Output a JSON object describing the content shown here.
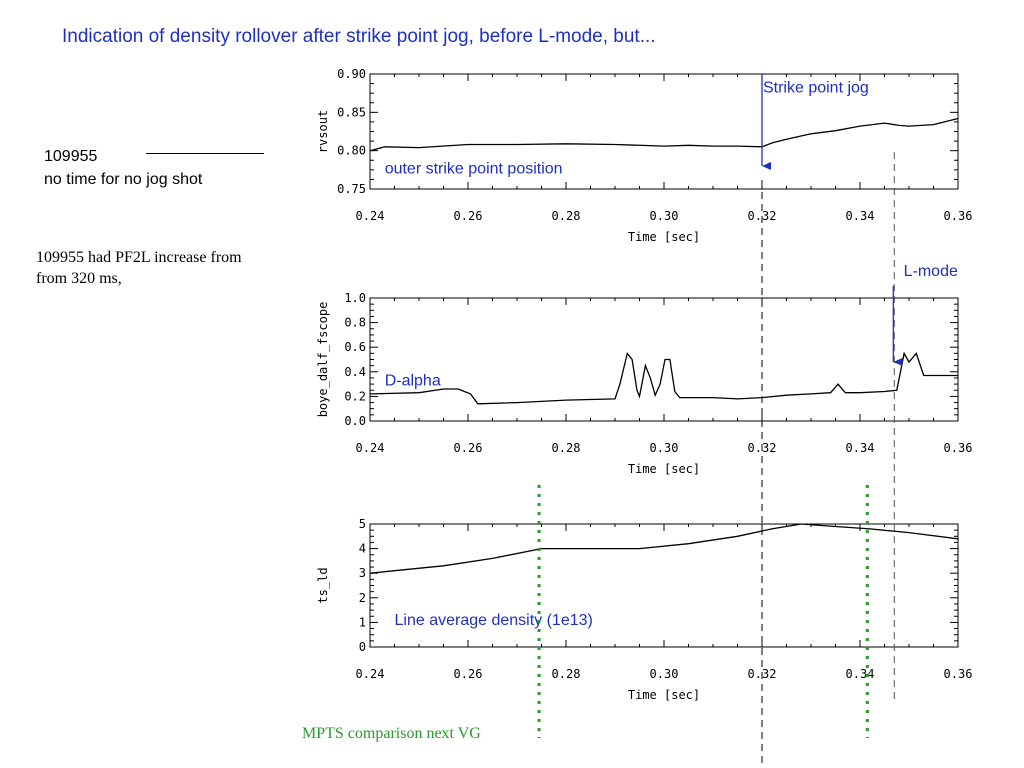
{
  "title": "Indication of density rollover after strike point jog, before L-mode, but...",
  "shot": {
    "number": "109955",
    "note": "no time for no jog shot"
  },
  "pf2l_note": "109955 had PF2L increase from from 320 ms,",
  "mpts_note": "MPTS comparison next VG",
  "colors": {
    "annotation": "#1f2fc0",
    "mpts": "#2a9a2a",
    "trace": "#000000"
  },
  "markers": {
    "strike_jog_time": 0.32,
    "lmode_time": 0.347,
    "mpts_times": [
      0.2745,
      0.3415
    ]
  },
  "chart_data": [
    {
      "type": "line",
      "ylabel": "rvsout",
      "xlabel": "Time [sec]",
      "xlim": [
        0.24,
        0.36
      ],
      "ylim": [
        0.75,
        0.9
      ],
      "xticks": [
        "0.24",
        "0.26",
        "0.28",
        "0.30",
        "0.32",
        "0.34",
        "0.36"
      ],
      "yticks": [
        "0.75",
        "0.80",
        "0.85",
        "0.90"
      ],
      "annotations": [
        {
          "text": "outer strike point position",
          "x": 0.243,
          "y": 0.77
        },
        {
          "text": "Strike point jog",
          "x": 0.3202,
          "y": 0.876
        }
      ],
      "arrows": [
        {
          "x": 0.32,
          "y_from": 0.9,
          "y_to": 0.78
        }
      ],
      "series": [
        {
          "x": [
            0.24,
            0.243,
            0.25,
            0.26,
            0.27,
            0.28,
            0.29,
            0.3,
            0.305,
            0.31,
            0.315,
            0.32,
            0.322,
            0.325,
            0.33,
            0.335,
            0.34,
            0.345,
            0.348,
            0.35,
            0.355,
            0.36
          ],
          "y": [
            0.8,
            0.805,
            0.804,
            0.808,
            0.808,
            0.809,
            0.808,
            0.806,
            0.807,
            0.806,
            0.806,
            0.805,
            0.81,
            0.815,
            0.822,
            0.826,
            0.832,
            0.836,
            0.833,
            0.832,
            0.834,
            0.842
          ]
        }
      ]
    },
    {
      "type": "line",
      "ylabel": "boye_dalf_fscope",
      "xlabel": "Time [sec]",
      "xlim": [
        0.24,
        0.36
      ],
      "ylim": [
        0.0,
        1.0
      ],
      "xticks": [
        "0.24",
        "0.26",
        "0.28",
        "0.30",
        "0.32",
        "0.34",
        "0.36"
      ],
      "yticks": [
        "0.0",
        "0.2",
        "0.4",
        "0.6",
        "0.8",
        "1.0"
      ],
      "annotations": [
        {
          "text": "D-alpha",
          "x": 0.243,
          "y": 0.29
        },
        {
          "text": "L-mode",
          "x": 0.3489,
          "y": 1.18
        }
      ],
      "arrows": [
        {
          "x": 0.3468,
          "y_from": 1.1,
          "y_to": 0.48
        }
      ],
      "series": [
        {
          "x": [
            0.24,
            0.25,
            0.255,
            0.258,
            0.2605,
            0.262,
            0.27,
            0.28,
            0.29,
            0.291,
            0.2925,
            0.2935,
            0.2945,
            0.295,
            0.2962,
            0.2972,
            0.2982,
            0.2992,
            0.3002,
            0.3012,
            0.3022,
            0.3032,
            0.3045,
            0.31,
            0.315,
            0.32,
            0.325,
            0.33,
            0.334,
            0.3355,
            0.337,
            0.34,
            0.345,
            0.3475,
            0.349,
            0.35,
            0.3515,
            0.353,
            0.36
          ],
          "y": [
            0.22,
            0.23,
            0.26,
            0.26,
            0.22,
            0.14,
            0.15,
            0.17,
            0.18,
            0.3,
            0.55,
            0.5,
            0.25,
            0.2,
            0.45,
            0.35,
            0.21,
            0.3,
            0.5,
            0.5,
            0.24,
            0.19,
            0.19,
            0.19,
            0.18,
            0.19,
            0.21,
            0.22,
            0.23,
            0.3,
            0.23,
            0.23,
            0.24,
            0.25,
            0.55,
            0.48,
            0.55,
            0.37,
            0.37
          ]
        }
      ]
    },
    {
      "type": "line",
      "ylabel": "ts_ld",
      "xlabel": "Time [sec]",
      "xlim": [
        0.24,
        0.36
      ],
      "ylim": [
        0,
        5
      ],
      "xticks": [
        "0.24",
        "0.26",
        "0.28",
        "0.30",
        "0.32",
        "0.34",
        "0.36"
      ],
      "yticks": [
        "0",
        "1",
        "2",
        "3",
        "4",
        "5"
      ],
      "annotations": [
        {
          "text": "Line average density (1e13)",
          "x": 0.245,
          "y": 0.9
        }
      ],
      "arrows": [],
      "series": [
        {
          "x": [
            0.24,
            0.245,
            0.255,
            0.265,
            0.275,
            0.285,
            0.295,
            0.305,
            0.315,
            0.322,
            0.328,
            0.335,
            0.342,
            0.35,
            0.36
          ],
          "y": [
            3.0,
            3.1,
            3.3,
            3.6,
            4.0,
            4.0,
            4.0,
            4.2,
            4.5,
            4.8,
            5.0,
            4.9,
            4.8,
            4.65,
            4.4
          ]
        }
      ]
    }
  ]
}
